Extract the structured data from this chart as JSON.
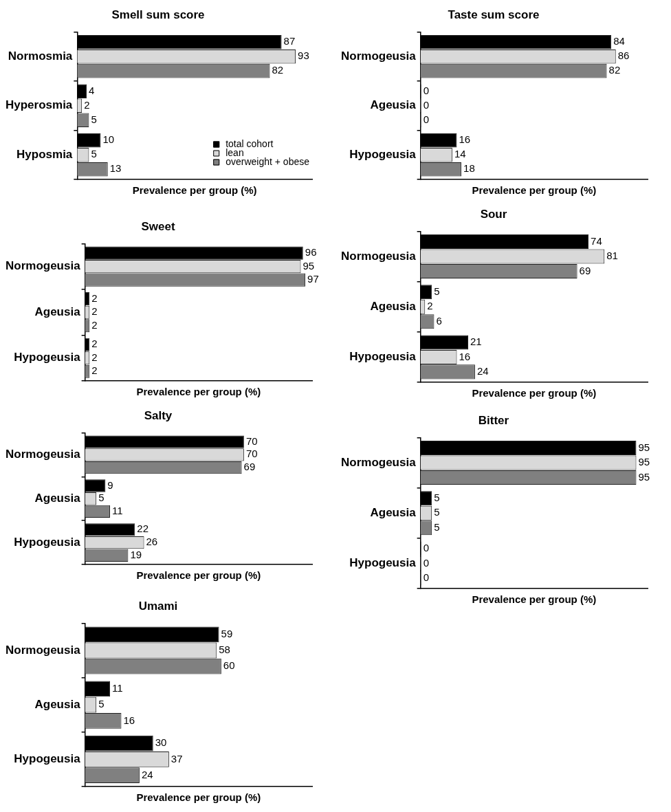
{
  "chart_data": [
    {
      "type": "bar",
      "orientation": "horizontal",
      "title": "Smell sum score",
      "xlabel": "Prevalence per group (%)",
      "categories": [
        "Normosmia",
        "Hyperosmia",
        "Hyposmia"
      ],
      "xlim": [
        0,
        100
      ],
      "tick_labels": "y",
      "data_labels": true,
      "legend": "bottom right",
      "series": [
        {
          "name": "total cohort",
          "color": "#000000",
          "values": [
            87,
            4,
            10
          ]
        },
        {
          "name": "lean",
          "color": "#d9d9d9",
          "values": [
            93,
            2,
            5
          ]
        },
        {
          "name": "overweight + obese",
          "color": "#808080",
          "values": [
            82,
            5,
            13
          ]
        }
      ]
    },
    {
      "type": "bar",
      "orientation": "horizontal",
      "title": "Taste sum score",
      "xlabel": "Prevalence per group (%)",
      "categories": [
        "Normogeusia",
        "Ageusia",
        "Hypogeusia"
      ],
      "xlim": [
        0,
        100
      ],
      "tick_labels": "y",
      "data_labels": true,
      "series": [
        {
          "color": "#000000",
          "values": [
            84,
            0,
            16
          ]
        },
        {
          "color": "#d9d9d9",
          "values": [
            86,
            0,
            14
          ]
        },
        {
          "color": "#808080",
          "values": [
            82,
            0,
            18
          ]
        }
      ]
    },
    {
      "type": "bar",
      "orientation": "horizontal",
      "title": "Sweet",
      "xlabel": "Prevalence per group (%)",
      "categories": [
        "Normogeusia",
        "Ageusia",
        "Hypogeusia"
      ],
      "xlim": [
        0,
        100
      ],
      "tick_labels": "y",
      "data_labels": true,
      "series": [
        {
          "color": "#000000",
          "values": [
            96,
            2,
            2
          ]
        },
        {
          "color": "#d9d9d9",
          "values": [
            95,
            2,
            2
          ]
        },
        {
          "color": "#808080",
          "values": [
            97,
            2,
            2
          ]
        }
      ]
    },
    {
      "type": "bar",
      "orientation": "horizontal",
      "title": "Sour",
      "xlabel": "Prevalence per group (%)",
      "categories": [
        "Normogeusia",
        "Ageusia",
        "Hypogeusia"
      ],
      "xlim": [
        0,
        100
      ],
      "tick_labels": "y",
      "data_labels": true,
      "series": [
        {
          "color": "#000000",
          "values": [
            74,
            5,
            21
          ]
        },
        {
          "color": "#d9d9d9",
          "values": [
            81,
            2,
            16
          ]
        },
        {
          "color": "#808080",
          "values": [
            69,
            6,
            24
          ]
        }
      ]
    },
    {
      "type": "bar",
      "orientation": "horizontal",
      "title": "Salty",
      "xlabel": "Prevalence per group (%)",
      "categories": [
        "Normogeusia",
        "Ageusia",
        "Hypogeusia"
      ],
      "xlim": [
        0,
        100
      ],
      "tick_labels": "y",
      "data_labels": true,
      "series": [
        {
          "color": "#000000",
          "values": [
            70,
            9,
            22
          ]
        },
        {
          "color": "#d9d9d9",
          "values": [
            70,
            5,
            26
          ]
        },
        {
          "color": "#808080",
          "values": [
            69,
            11,
            19
          ]
        }
      ]
    },
    {
      "type": "bar",
      "orientation": "horizontal",
      "title": "Bitter",
      "xlabel": "Prevalence per group (%)",
      "categories": [
        "Normogeusia",
        "Ageusia",
        "Hypogeusia"
      ],
      "xlim": [
        0,
        100
      ],
      "tick_labels": "y",
      "data_labels": true,
      "series": [
        {
          "color": "#000000",
          "values": [
            95,
            5,
            0
          ]
        },
        {
          "color": "#d9d9d9",
          "values": [
            95,
            5,
            0
          ]
        },
        {
          "color": "#808080",
          "values": [
            95,
            5,
            0
          ]
        }
      ]
    },
    {
      "type": "bar",
      "orientation": "horizontal",
      "title": "Umami",
      "xlabel": "Prevalence per group (%)",
      "categories": [
        "Normogeusia",
        "Ageusia",
        "Hypogeusia"
      ],
      "xlim": [
        0,
        100
      ],
      "tick_labels": "y",
      "data_labels": true,
      "series": [
        {
          "color": "#000000",
          "values": [
            59,
            11,
            30
          ]
        },
        {
          "color": "#d9d9d9",
          "values": [
            58,
            5,
            37
          ]
        },
        {
          "color": "#808080",
          "values": [
            60,
            16,
            24
          ]
        }
      ]
    }
  ]
}
